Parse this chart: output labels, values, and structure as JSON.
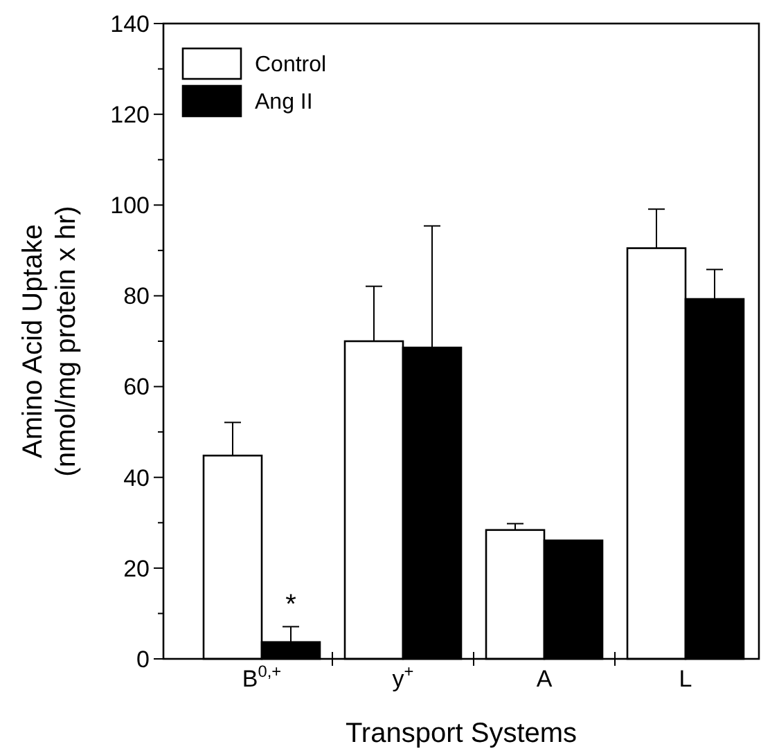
{
  "chart_data": {
    "type": "bar",
    "xlabel": "Transport Systems",
    "ylabel": "Amino Acid Uptake\n(nmol/mg protein x hr)",
    "categories": [
      "B$^{0,+}$",
      "y$^{+}$",
      "A",
      "L"
    ],
    "series": [
      {
        "name": "Control",
        "color": "#ffffff",
        "values": [
          44.8,
          70.0,
          28.4,
          90.5
        ],
        "errors": [
          7.3,
          12.1,
          1.4,
          8.6
        ]
      },
      {
        "name": "Ang II",
        "color": "#000000",
        "values": [
          3.7,
          68.6,
          26.1,
          79.3
        ],
        "errors": [
          3.4,
          26.8,
          null,
          6.5
        ]
      }
    ],
    "ylim": [
      0,
      140
    ],
    "yticks": [
      0,
      {
        "value": 10,
        "label": null
      },
      20,
      {
        "value": 30,
        "label": null
      },
      40,
      {
        "value": 50,
        "label": null
      },
      60,
      {
        "value": 70,
        "label": null
      },
      80,
      {
        "value": 90,
        "label": null
      },
      100,
      {
        "value": 110,
        "label": null
      },
      120,
      {
        "value": 130,
        "label": null
      },
      140
    ],
    "annotations": [
      {
        "text": "*",
        "x": "B$^{0,+}$",
        "y": 10
      }
    ],
    "legend": "top left",
    "grid": false
  }
}
